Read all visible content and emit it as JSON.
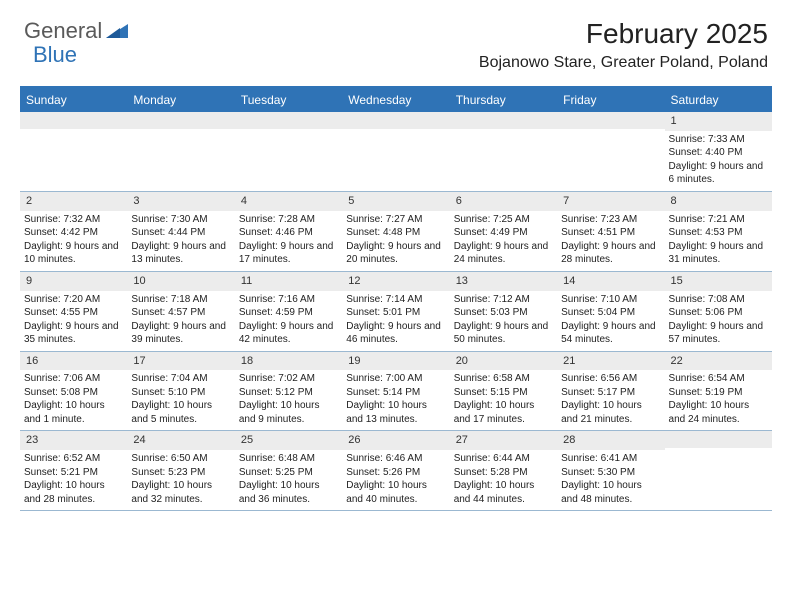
{
  "brand": {
    "word1": "General",
    "word2": "Blue",
    "word1_color": "#5a5a5a",
    "word2_color": "#2f73b6"
  },
  "title": "February 2025",
  "location": "Bojanowo Stare, Greater Poland, Poland",
  "colors": {
    "header_bg": "#2f73b6",
    "header_text": "#ffffff",
    "grid_line": "#9bb8d1",
    "daynum_bg": "#ececec",
    "text": "#222222",
    "background": "#ffffff"
  },
  "day_names": [
    "Sunday",
    "Monday",
    "Tuesday",
    "Wednesday",
    "Thursday",
    "Friday",
    "Saturday"
  ],
  "weeks": [
    [
      {
        "num": "",
        "sunrise": "",
        "sunset": "",
        "daylight": ""
      },
      {
        "num": "",
        "sunrise": "",
        "sunset": "",
        "daylight": ""
      },
      {
        "num": "",
        "sunrise": "",
        "sunset": "",
        "daylight": ""
      },
      {
        "num": "",
        "sunrise": "",
        "sunset": "",
        "daylight": ""
      },
      {
        "num": "",
        "sunrise": "",
        "sunset": "",
        "daylight": ""
      },
      {
        "num": "",
        "sunrise": "",
        "sunset": "",
        "daylight": ""
      },
      {
        "num": "1",
        "sunrise": "Sunrise: 7:33 AM",
        "sunset": "Sunset: 4:40 PM",
        "daylight": "Daylight: 9 hours and 6 minutes."
      }
    ],
    [
      {
        "num": "2",
        "sunrise": "Sunrise: 7:32 AM",
        "sunset": "Sunset: 4:42 PM",
        "daylight": "Daylight: 9 hours and 10 minutes."
      },
      {
        "num": "3",
        "sunrise": "Sunrise: 7:30 AM",
        "sunset": "Sunset: 4:44 PM",
        "daylight": "Daylight: 9 hours and 13 minutes."
      },
      {
        "num": "4",
        "sunrise": "Sunrise: 7:28 AM",
        "sunset": "Sunset: 4:46 PM",
        "daylight": "Daylight: 9 hours and 17 minutes."
      },
      {
        "num": "5",
        "sunrise": "Sunrise: 7:27 AM",
        "sunset": "Sunset: 4:48 PM",
        "daylight": "Daylight: 9 hours and 20 minutes."
      },
      {
        "num": "6",
        "sunrise": "Sunrise: 7:25 AM",
        "sunset": "Sunset: 4:49 PM",
        "daylight": "Daylight: 9 hours and 24 minutes."
      },
      {
        "num": "7",
        "sunrise": "Sunrise: 7:23 AM",
        "sunset": "Sunset: 4:51 PM",
        "daylight": "Daylight: 9 hours and 28 minutes."
      },
      {
        "num": "8",
        "sunrise": "Sunrise: 7:21 AM",
        "sunset": "Sunset: 4:53 PM",
        "daylight": "Daylight: 9 hours and 31 minutes."
      }
    ],
    [
      {
        "num": "9",
        "sunrise": "Sunrise: 7:20 AM",
        "sunset": "Sunset: 4:55 PM",
        "daylight": "Daylight: 9 hours and 35 minutes."
      },
      {
        "num": "10",
        "sunrise": "Sunrise: 7:18 AM",
        "sunset": "Sunset: 4:57 PM",
        "daylight": "Daylight: 9 hours and 39 minutes."
      },
      {
        "num": "11",
        "sunrise": "Sunrise: 7:16 AM",
        "sunset": "Sunset: 4:59 PM",
        "daylight": "Daylight: 9 hours and 42 minutes."
      },
      {
        "num": "12",
        "sunrise": "Sunrise: 7:14 AM",
        "sunset": "Sunset: 5:01 PM",
        "daylight": "Daylight: 9 hours and 46 minutes."
      },
      {
        "num": "13",
        "sunrise": "Sunrise: 7:12 AM",
        "sunset": "Sunset: 5:03 PM",
        "daylight": "Daylight: 9 hours and 50 minutes."
      },
      {
        "num": "14",
        "sunrise": "Sunrise: 7:10 AM",
        "sunset": "Sunset: 5:04 PM",
        "daylight": "Daylight: 9 hours and 54 minutes."
      },
      {
        "num": "15",
        "sunrise": "Sunrise: 7:08 AM",
        "sunset": "Sunset: 5:06 PM",
        "daylight": "Daylight: 9 hours and 57 minutes."
      }
    ],
    [
      {
        "num": "16",
        "sunrise": "Sunrise: 7:06 AM",
        "sunset": "Sunset: 5:08 PM",
        "daylight": "Daylight: 10 hours and 1 minute."
      },
      {
        "num": "17",
        "sunrise": "Sunrise: 7:04 AM",
        "sunset": "Sunset: 5:10 PM",
        "daylight": "Daylight: 10 hours and 5 minutes."
      },
      {
        "num": "18",
        "sunrise": "Sunrise: 7:02 AM",
        "sunset": "Sunset: 5:12 PM",
        "daylight": "Daylight: 10 hours and 9 minutes."
      },
      {
        "num": "19",
        "sunrise": "Sunrise: 7:00 AM",
        "sunset": "Sunset: 5:14 PM",
        "daylight": "Daylight: 10 hours and 13 minutes."
      },
      {
        "num": "20",
        "sunrise": "Sunrise: 6:58 AM",
        "sunset": "Sunset: 5:15 PM",
        "daylight": "Daylight: 10 hours and 17 minutes."
      },
      {
        "num": "21",
        "sunrise": "Sunrise: 6:56 AM",
        "sunset": "Sunset: 5:17 PM",
        "daylight": "Daylight: 10 hours and 21 minutes."
      },
      {
        "num": "22",
        "sunrise": "Sunrise: 6:54 AM",
        "sunset": "Sunset: 5:19 PM",
        "daylight": "Daylight: 10 hours and 24 minutes."
      }
    ],
    [
      {
        "num": "23",
        "sunrise": "Sunrise: 6:52 AM",
        "sunset": "Sunset: 5:21 PM",
        "daylight": "Daylight: 10 hours and 28 minutes."
      },
      {
        "num": "24",
        "sunrise": "Sunrise: 6:50 AM",
        "sunset": "Sunset: 5:23 PM",
        "daylight": "Daylight: 10 hours and 32 minutes."
      },
      {
        "num": "25",
        "sunrise": "Sunrise: 6:48 AM",
        "sunset": "Sunset: 5:25 PM",
        "daylight": "Daylight: 10 hours and 36 minutes."
      },
      {
        "num": "26",
        "sunrise": "Sunrise: 6:46 AM",
        "sunset": "Sunset: 5:26 PM",
        "daylight": "Daylight: 10 hours and 40 minutes."
      },
      {
        "num": "27",
        "sunrise": "Sunrise: 6:44 AM",
        "sunset": "Sunset: 5:28 PM",
        "daylight": "Daylight: 10 hours and 44 minutes."
      },
      {
        "num": "28",
        "sunrise": "Sunrise: 6:41 AM",
        "sunset": "Sunset: 5:30 PM",
        "daylight": "Daylight: 10 hours and 48 minutes."
      },
      {
        "num": "",
        "sunrise": "",
        "sunset": "",
        "daylight": ""
      }
    ]
  ]
}
